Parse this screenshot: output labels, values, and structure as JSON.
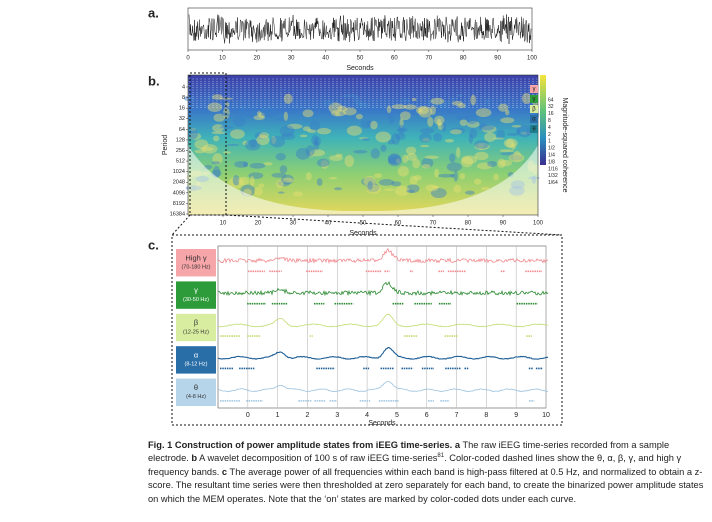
{
  "panel_a": {
    "label": "a.",
    "xlabel": "Seconds",
    "xlim": [
      0,
      100
    ],
    "xticks": [
      0,
      10,
      20,
      30,
      40,
      50,
      60,
      70,
      80,
      90,
      100
    ]
  },
  "panel_b": {
    "label": "b.",
    "ylabel": "Period",
    "yticks": [
      4,
      8,
      16,
      32,
      64,
      128,
      256,
      512,
      1024,
      2048,
      4096,
      8192,
      16384
    ],
    "xlabel": "Seconds",
    "xlim": [
      0,
      100
    ],
    "xticks": [
      10,
      20,
      30,
      40,
      50,
      60,
      70,
      80,
      90,
      100
    ],
    "colorbar": {
      "label": "Magnitude-squared coherence",
      "ticks": [
        "64",
        "32",
        "16",
        "8",
        "4",
        "2",
        "1",
        "1/2",
        "1/4",
        "1/8",
        "1/16",
        "1/32",
        "1/64"
      ]
    },
    "bands": [
      {
        "label": "γ",
        "color": "#f6a5a8"
      },
      {
        "label": "γ",
        "color": "#2e9b3a"
      },
      {
        "label": "β",
        "color": "#d9eda0"
      },
      {
        "label": "α",
        "color": "#2a6ea8"
      },
      {
        "label": "θ",
        "color": "#1f7f8f"
      }
    ]
  },
  "panel_c": {
    "label": "c.",
    "xlabel": "Seconds",
    "xlim": [
      -1,
      10
    ],
    "xticks": [
      0,
      1,
      2,
      3,
      4,
      5,
      6,
      7,
      8,
      9,
      10
    ],
    "bands": [
      {
        "name": "High γ",
        "range": "(70-180 Hz)",
        "color": "#f6a5a8",
        "line": "#f08a8f"
      },
      {
        "name": "γ",
        "range": "(30-50 Hz)",
        "color": "#2e9b3a",
        "line": "#2a8a30"
      },
      {
        "name": "β",
        "range": "(12-25 Hz)",
        "color": "#d9eda0",
        "line": "#c2dc70"
      },
      {
        "name": "α",
        "range": "(8-12 Hz)",
        "color": "#2a6ea8",
        "line": "#1f5f96"
      },
      {
        "name": "θ",
        "range": "(4-8 Hz)",
        "color": "#b6d5ea",
        "line": "#9cc3e0"
      }
    ]
  },
  "caption": [
    {
      "text": "Fig. 1 Construction of power amplitude states from iEEG time-series. a",
      "style": "b"
    },
    {
      "text": " The raw iEEG time-series recorded from a sample electrode. ",
      "style": "n"
    },
    {
      "text": "b",
      "style": "b"
    },
    {
      "text": " A wavelet decomposition of 100 s of raw iEEG time-series",
      "style": "n"
    },
    {
      "text": "81",
      "style": "sup"
    },
    {
      "text": ". Color-coded dashed lines show the θ, α, β, γ, and high γ frequency bands. ",
      "style": "n"
    },
    {
      "text": "c",
      "style": "b"
    },
    {
      "text": " The average power of all frequencies within each band is high-pass filtered at 0.5 Hz, and normalized to obtain a z-score. The resultant time series were then thresholded at zero separately for each band, to create the binarized power amplitude states on which the MEM operates. Note that the ‘on’ states are marked by color-coded dots under each curve.",
      "style": "n"
    }
  ]
}
